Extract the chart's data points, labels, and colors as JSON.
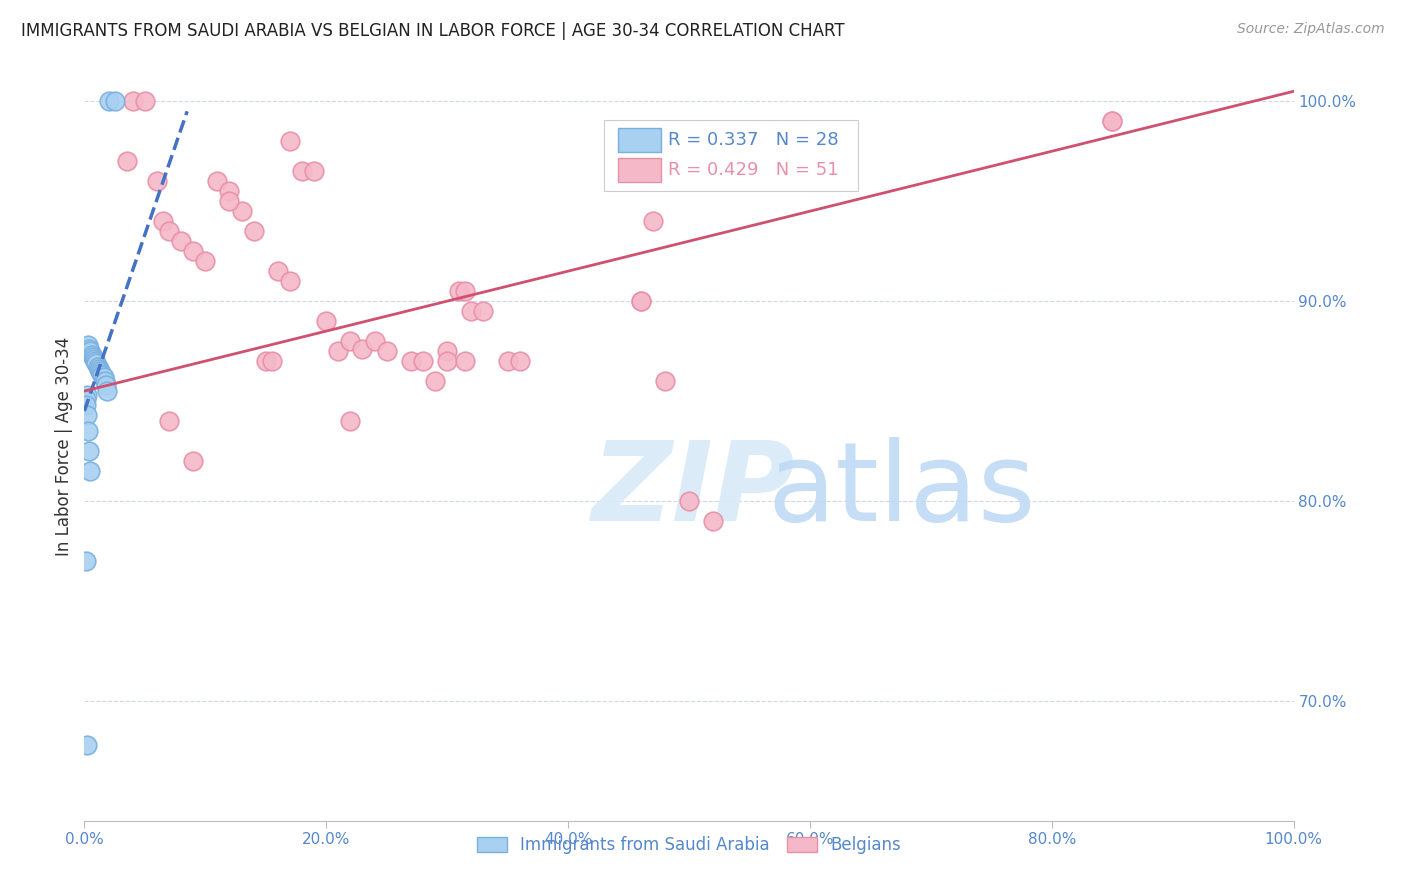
{
  "title": "IMMIGRANTS FROM SAUDI ARABIA VS BELGIAN IN LABOR FORCE | AGE 30-34 CORRELATION CHART",
  "source": "Source: ZipAtlas.com",
  "ylabel": "In Labor Force | Age 30-34",
  "xlim": [
    0.0,
    1.0
  ],
  "ylim": [
    0.64,
    1.015
  ],
  "yticks": [
    0.7,
    0.8,
    0.9,
    1.0
  ],
  "xticks": [
    0.0,
    0.2,
    0.4,
    0.6,
    0.8,
    1.0
  ],
  "xtick_labels": [
    "0.0%",
    "20.0%",
    "40.0%",
    "60.0%",
    "80.0%",
    "100.0%"
  ],
  "ytick_labels": [
    "70.0%",
    "80.0%",
    "90.0%",
    "100.0%"
  ],
  "legend1_r": "0.337",
  "legend1_n": "28",
  "legend2_r": "0.429",
  "legend2_n": "51",
  "blue_color": "#a8d0f0",
  "blue_edge": "#7ab0e0",
  "pink_color": "#f5b8c8",
  "pink_edge": "#e890a8",
  "blue_line_color": "#4472c4",
  "pink_line_color": "#d05070",
  "axis_color": "#5588cc",
  "grid_color": "#d0d8e8",
  "blue_scatter_x": [
    0.02,
    0.025,
    0.003,
    0.004,
    0.005,
    0.006,
    0.007,
    0.008,
    0.009,
    0.01,
    0.011,
    0.012,
    0.013,
    0.014,
    0.015,
    0.016,
    0.017,
    0.018,
    0.019,
    0.002,
    0.001,
    0.001,
    0.002,
    0.003,
    0.004,
    0.005,
    0.001,
    0.002
  ],
  "blue_scatter_y": [
    1.0,
    1.0,
    0.878,
    0.876,
    0.875,
    0.873,
    0.872,
    0.871,
    0.87,
    0.869,
    0.867,
    0.866,
    0.865,
    0.864,
    0.863,
    0.862,
    0.86,
    0.858,
    0.855,
    0.853,
    0.851,
    0.848,
    0.843,
    0.835,
    0.825,
    0.815,
    0.77,
    0.678
  ],
  "pink_scatter_x": [
    0.035,
    0.04,
    0.05,
    0.06,
    0.065,
    0.07,
    0.08,
    0.09,
    0.1,
    0.11,
    0.12,
    0.13,
    0.14,
    0.15,
    0.155,
    0.16,
    0.17,
    0.18,
    0.19,
    0.2,
    0.21,
    0.22,
    0.23,
    0.24,
    0.25,
    0.27,
    0.28,
    0.29,
    0.3,
    0.31,
    0.315,
    0.32,
    0.33,
    0.35,
    0.36,
    0.46,
    0.47,
    0.48,
    0.5,
    0.52,
    0.85,
    0.07,
    0.09,
    0.12,
    0.17,
    0.22,
    0.3,
    0.315,
    0.46,
    0.5,
    0.85
  ],
  "pink_scatter_y": [
    0.97,
    1.0,
    1.0,
    0.96,
    0.94,
    0.935,
    0.93,
    0.925,
    0.92,
    0.96,
    0.955,
    0.945,
    0.935,
    0.87,
    0.87,
    0.915,
    0.91,
    0.965,
    0.965,
    0.89,
    0.875,
    0.88,
    0.876,
    0.88,
    0.875,
    0.87,
    0.87,
    0.86,
    0.875,
    0.905,
    0.905,
    0.895,
    0.895,
    0.87,
    0.87,
    0.9,
    0.94,
    0.86,
    0.965,
    0.79,
    0.99,
    0.84,
    0.82,
    0.95,
    0.98,
    0.84,
    0.87,
    0.87,
    0.9,
    0.8,
    0.99
  ],
  "blue_line_x0": 0.0,
  "blue_line_x1": 0.085,
  "blue_line_y0": 0.845,
  "blue_line_y1": 0.995,
  "pink_line_x0": 0.0,
  "pink_line_x1": 1.0,
  "pink_line_y0": 0.855,
  "pink_line_y1": 1.005
}
